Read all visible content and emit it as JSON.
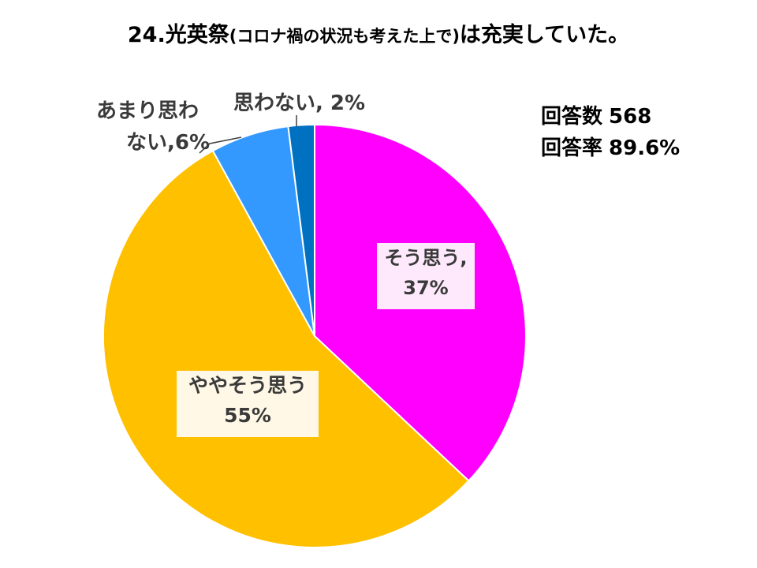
{
  "chart_data": {
    "type": "pie",
    "title_main_start": "24.光英祭",
    "title_sub": "(コロナ禍の状況も考えた上で)",
    "title_main_end": "は充実していた。",
    "slices": [
      {
        "label": "そう思う",
        "value": 37,
        "value_text": "37%",
        "color": "#ff00ff"
      },
      {
        "label": "ややそう思う",
        "value": 55,
        "value_text": "55%",
        "color": "#ffc000"
      },
      {
        "label_line1": "あまり思わ",
        "label_line2": "ない",
        "value": 6,
        "value_text": "6%",
        "color": "#3399ff"
      },
      {
        "label": "思わない",
        "value": 2,
        "value_text": "2%",
        "color": "#0070c0"
      }
    ],
    "label_texts": {
      "s0_line1": "そう思う,",
      "s0_line2": "37%",
      "s1_line1": "ややそう思う",
      "s1_line2": "55%",
      "s2_line1": "あまり思わ",
      "s2_line2": "ない,6%",
      "s3_line1": "思わない, 2%"
    }
  },
  "stats": {
    "responses_label": "回答数",
    "responses_value": "568",
    "rate_label": "回答率",
    "rate_value": "89.6%"
  }
}
